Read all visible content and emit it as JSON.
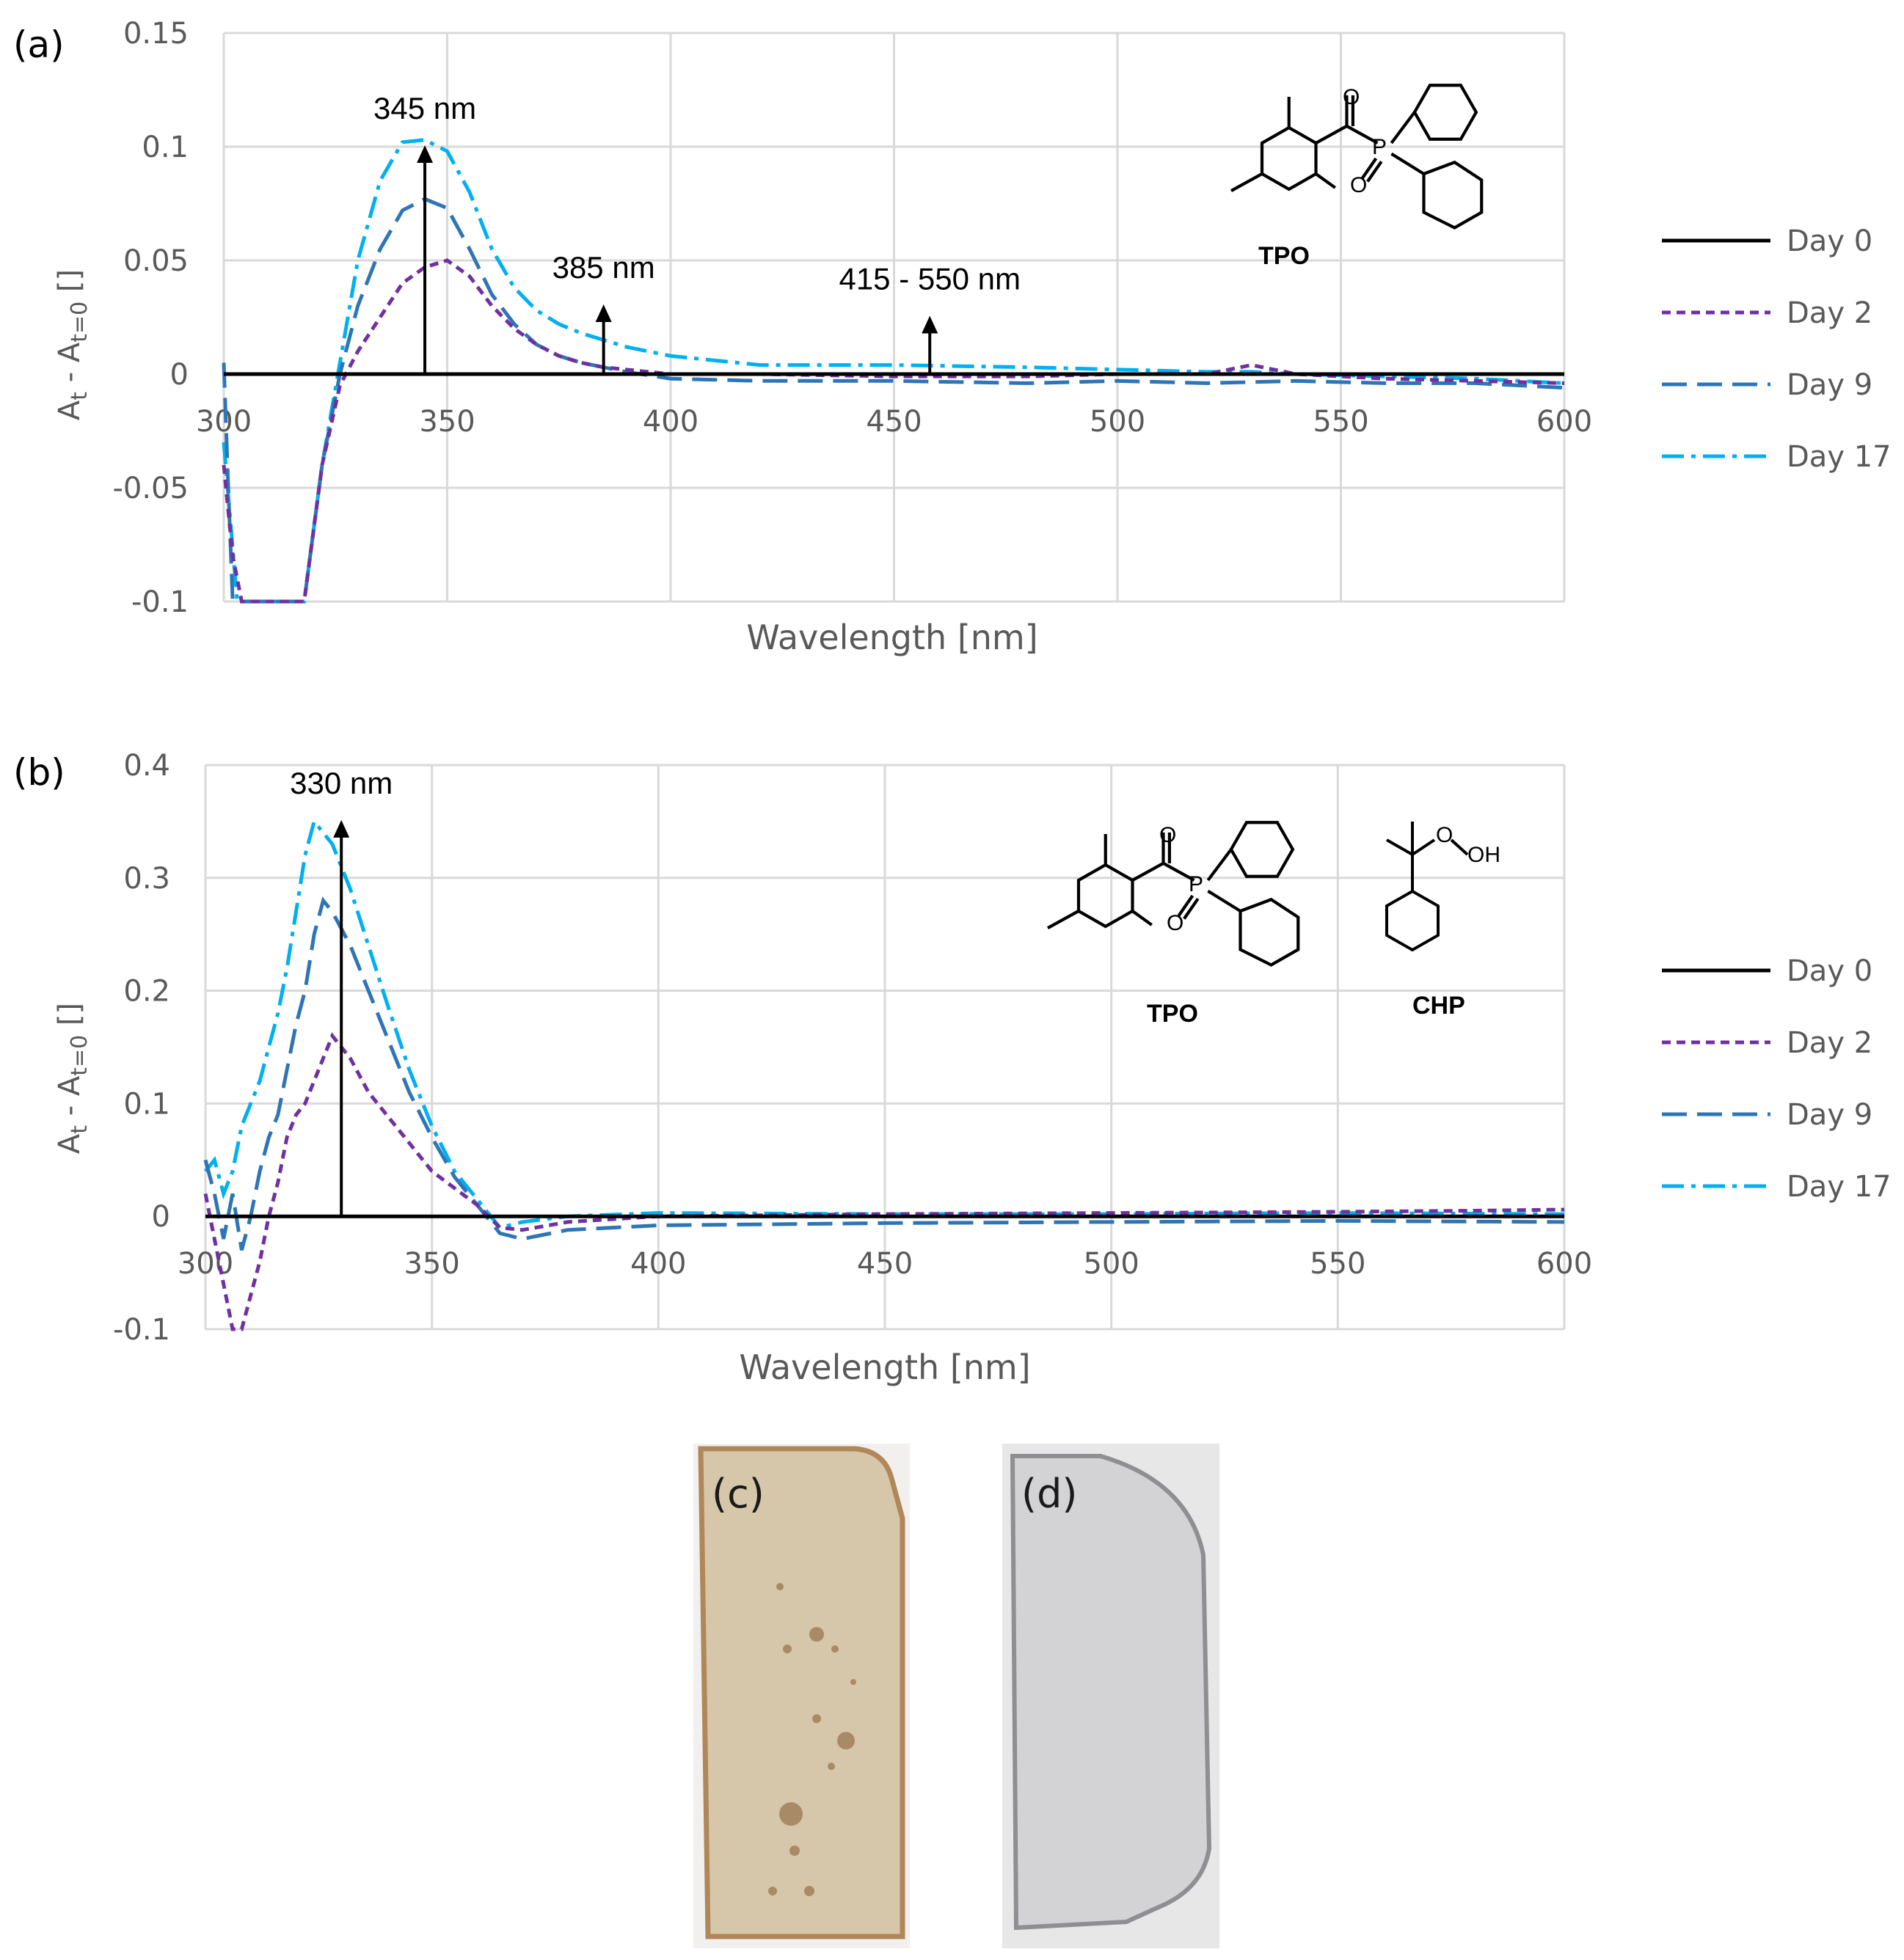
{
  "chart_data": [
    {
      "type": "line",
      "panel_label": "(a)",
      "xlabel": "Wavelength [nm]",
      "ylabel": "A",
      "ylabel_sub1": "t",
      "ylabel_mid": " - A",
      "ylabel_sub2": "t=0",
      "ylabel_tail": " []",
      "xlim": [
        300,
        600
      ],
      "ylim": [
        -0.1,
        0.15
      ],
      "x_ticks": [
        300,
        350,
        400,
        450,
        500,
        550,
        600
      ],
      "x_tick_labels": [
        "300",
        "350",
        "400",
        "450",
        "500",
        "550",
        "600"
      ],
      "y_ticks": [
        0.15,
        0.1,
        0.05,
        0,
        -0.05,
        -0.1
      ],
      "y_tick_labels": [
        "0.15",
        "0.1",
        "0.05",
        "0",
        "-0.05",
        "-0.1"
      ],
      "grid": true,
      "legend_position": "right",
      "annotations": [
        {
          "text": "345 nm",
          "x": 345,
          "y_from": 0,
          "y_to": 0.1
        },
        {
          "text": "385 nm",
          "x": 385,
          "y_from": 0,
          "y_to": 0.03
        },
        {
          "text": "415 - 550 nm",
          "x": 458,
          "y_from": 0,
          "y_to": 0.025
        }
      ],
      "molecules": [
        "TPO"
      ],
      "series": [
        {
          "name": "Day 0",
          "color": "#000000",
          "dash": "solid",
          "x": [
            300,
            600
          ],
          "y": [
            0,
            0
          ]
        },
        {
          "name": "Day 2",
          "color": "#7030a0",
          "dash": "short-dash",
          "x": [
            300,
            302,
            304,
            318,
            322,
            326,
            330,
            335,
            340,
            345,
            350,
            355,
            360,
            365,
            370,
            375,
            380,
            385,
            390,
            400,
            420,
            450,
            480,
            500,
            520,
            530,
            540,
            560,
            580,
            600
          ],
          "y": [
            -0.04,
            -0.08,
            -0.1,
            -0.1,
            -0.04,
            -0.005,
            0.01,
            0.025,
            0.04,
            0.047,
            0.05,
            0.043,
            0.03,
            0.02,
            0.013,
            0.008,
            0.005,
            0.003,
            0.002,
            0.0,
            0.0,
            -0.001,
            -0.001,
            0.0,
            0.0,
            0.004,
            0.0,
            -0.002,
            -0.003,
            -0.004
          ]
        },
        {
          "name": "Day 9",
          "color": "#2e75b6",
          "dash": "long-dash",
          "x": [
            300,
            301,
            302,
            304,
            318,
            322,
            326,
            330,
            335,
            340,
            345,
            350,
            355,
            360,
            365,
            370,
            375,
            380,
            385,
            390,
            400,
            420,
            450,
            480,
            500,
            520,
            540,
            560,
            580,
            600
          ],
          "y": [
            0.005,
            -0.05,
            -0.1,
            -0.1,
            -0.1,
            -0.04,
            0.0,
            0.03,
            0.055,
            0.072,
            0.077,
            0.073,
            0.055,
            0.035,
            0.022,
            0.013,
            0.008,
            0.005,
            0.003,
            0.001,
            -0.002,
            -0.003,
            -0.003,
            -0.004,
            -0.003,
            -0.004,
            -0.003,
            -0.004,
            -0.004,
            -0.006
          ]
        },
        {
          "name": "Day 17",
          "color": "#00b0f0",
          "dash": "dash-dot",
          "x": [
            300,
            303,
            305,
            318,
            322,
            326,
            330,
            335,
            340,
            345,
            350,
            355,
            360,
            365,
            370,
            375,
            380,
            385,
            390,
            400,
            420,
            450,
            480,
            500,
            520,
            530,
            540,
            560,
            580,
            600
          ],
          "y": [
            -0.03,
            -0.1,
            -0.1,
            -0.1,
            -0.04,
            0.005,
            0.05,
            0.085,
            0.102,
            0.103,
            0.098,
            0.08,
            0.055,
            0.038,
            0.028,
            0.022,
            0.018,
            0.015,
            0.012,
            0.008,
            0.004,
            0.004,
            0.003,
            0.002,
            0.001,
            0.001,
            0.0,
            -0.001,
            -0.002,
            -0.004
          ]
        }
      ]
    },
    {
      "type": "line",
      "panel_label": "(b)",
      "xlabel": "Wavelength [nm]",
      "ylabel": "A",
      "ylabel_sub1": "t",
      "ylabel_mid": " - A",
      "ylabel_sub2": "t=0",
      "ylabel_tail": " []",
      "xlim": [
        300,
        600
      ],
      "ylim": [
        -0.1,
        0.4
      ],
      "x_ticks": [
        300,
        350,
        400,
        450,
        500,
        550,
        600
      ],
      "x_tick_labels": [
        "300",
        "350",
        "400",
        "450",
        "500",
        "550",
        "600"
      ],
      "y_ticks": [
        0.4,
        0.3,
        0.2,
        0.1,
        0,
        -0.1
      ],
      "y_tick_labels": [
        "0.4",
        "0.3",
        "0.2",
        "0.1",
        "0",
        "-0.1"
      ],
      "grid": true,
      "legend_position": "right",
      "annotations": [
        {
          "text": "330 nm",
          "x": 330,
          "y_from": 0,
          "y_to": 0.35
        }
      ],
      "molecules": [
        "TPO",
        "CHP"
      ],
      "series": [
        {
          "name": "Day 0",
          "color": "#000000",
          "dash": "solid",
          "x": [
            300,
            600
          ],
          "y": [
            0,
            0
          ]
        },
        {
          "name": "Day 2",
          "color": "#7030a0",
          "dash": "short-dash",
          "x": [
            300,
            302,
            304,
            306,
            308,
            310,
            312,
            314,
            316,
            318,
            320,
            322,
            325,
            328,
            332,
            336,
            340,
            345,
            350,
            355,
            360,
            365,
            370,
            380,
            400,
            450,
            500,
            550,
            580,
            600
          ],
          "y": [
            0.02,
            -0.02,
            -0.06,
            -0.1,
            -0.1,
            -0.07,
            -0.04,
            0.0,
            0.03,
            0.07,
            0.09,
            0.1,
            0.13,
            0.16,
            0.14,
            0.11,
            0.09,
            0.065,
            0.04,
            0.025,
            0.01,
            -0.01,
            -0.012,
            -0.005,
            0.0,
            0.002,
            0.003,
            0.004,
            0.005,
            0.006
          ]
        },
        {
          "name": "Day 9",
          "color": "#2e75b6",
          "dash": "long-dash",
          "x": [
            300,
            302,
            304,
            306,
            308,
            310,
            312,
            314,
            316,
            318,
            320,
            322,
            324,
            326,
            328,
            332,
            336,
            340,
            345,
            350,
            355,
            360,
            365,
            370,
            380,
            400,
            450,
            500,
            550,
            600
          ],
          "y": [
            0.05,
            0.02,
            -0.02,
            0.02,
            -0.03,
            0.0,
            0.04,
            0.07,
            0.09,
            0.13,
            0.17,
            0.2,
            0.25,
            0.28,
            0.27,
            0.24,
            0.2,
            0.16,
            0.11,
            0.07,
            0.035,
            0.01,
            -0.015,
            -0.02,
            -0.012,
            -0.008,
            -0.006,
            -0.005,
            -0.004,
            -0.005
          ]
        },
        {
          "name": "Day 17",
          "color": "#00b0f0",
          "dash": "dash-dot",
          "x": [
            300,
            302,
            304,
            306,
            308,
            310,
            312,
            314,
            316,
            318,
            320,
            322,
            324,
            326,
            328,
            332,
            336,
            340,
            345,
            350,
            355,
            360,
            365,
            370,
            380,
            400,
            450,
            500,
            550,
            600
          ],
          "y": [
            0.04,
            0.05,
            0.02,
            0.04,
            0.08,
            0.1,
            0.12,
            0.15,
            0.18,
            0.22,
            0.27,
            0.32,
            0.35,
            0.34,
            0.33,
            0.29,
            0.24,
            0.19,
            0.13,
            0.08,
            0.04,
            0.015,
            -0.01,
            -0.005,
            0.0,
            0.003,
            0.002,
            0.002,
            0.003,
            0.002
          ]
        }
      ]
    }
  ],
  "photos": [
    {
      "label": "(c)",
      "tint": "#d6c6aa",
      "edge": "#b08758"
    },
    {
      "label": "(d)",
      "tint": "#d3d3d6",
      "edge": "#8e8e93"
    }
  ],
  "chem": {
    "tpo_label": "TPO",
    "chp_label": "CHP",
    "atom_O": "O",
    "atom_P": "P",
    "atom_OH": "OH"
  }
}
